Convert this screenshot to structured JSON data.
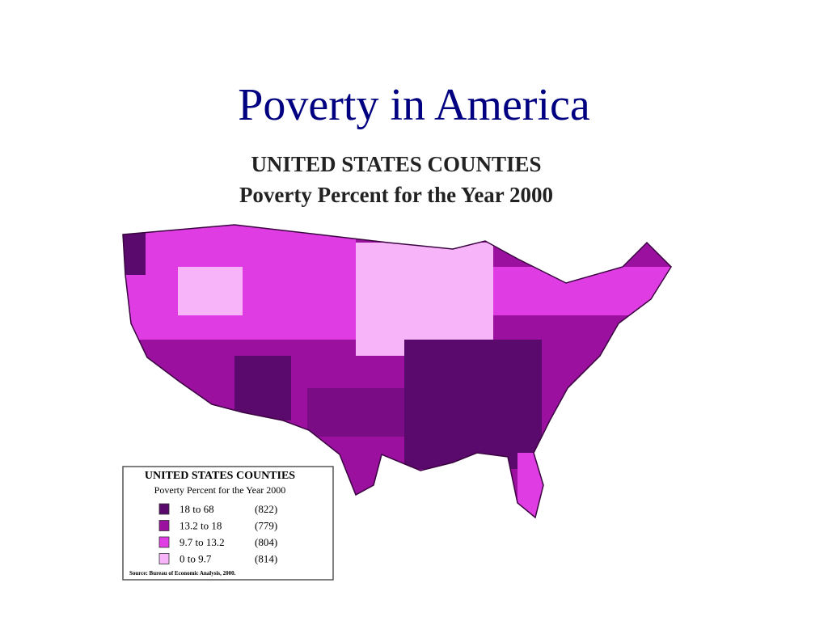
{
  "title": "Poverty in America",
  "map": {
    "heading": "UNITED STATES COUNTIES",
    "subheading": "Poverty Percent for the Year 2000"
  },
  "legend": {
    "title": "UNITED STATES COUNTIES",
    "subtitle": "Poverty Percent for the Year 2000",
    "items": [
      {
        "range": "18 to 68",
        "count": "(822)",
        "color": "#5a0a6c"
      },
      {
        "range": "13.2 to 18",
        "count": "(779)",
        "color": "#9b109f"
      },
      {
        "range": "9.7 to 13.2",
        "count": "(804)",
        "color": "#e03ce4"
      },
      {
        "range": "0 to 9.7",
        "count": "(814)",
        "color": "#f8b4f8"
      }
    ],
    "source": "Source: Bureau of Economic Analysis, 2000."
  }
}
